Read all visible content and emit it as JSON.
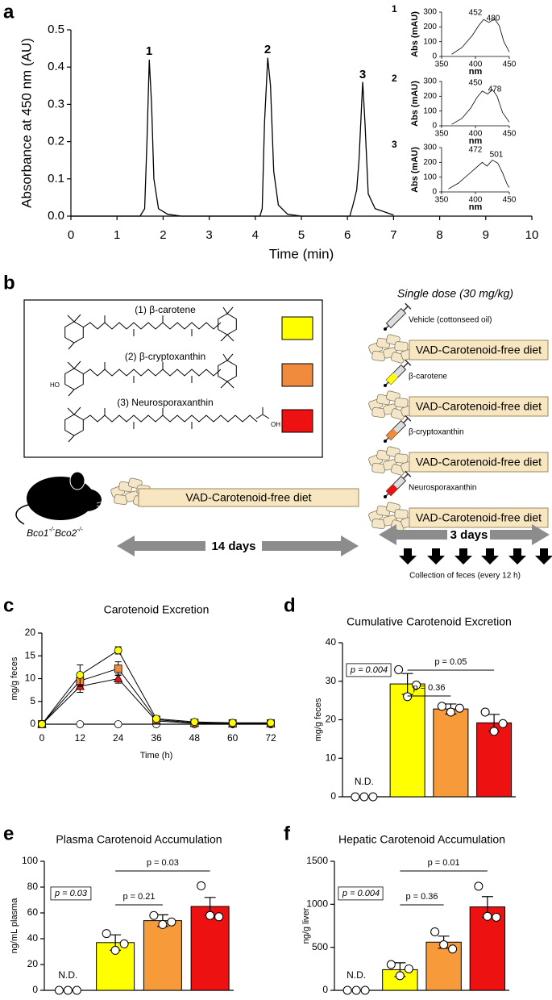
{
  "panel_labels": [
    "a",
    "b",
    "c",
    "d",
    "e",
    "f"
  ],
  "chart_data": [
    {
      "type": "line",
      "xlabel": "Time (min)",
      "ylabel": "Absorbance at 450 nm (AU)",
      "color": "#000000",
      "x": [
        0,
        1.5,
        1.6,
        1.65,
        1.7,
        1.75,
        1.8,
        1.9,
        2.1,
        2.4,
        4.1,
        4.15,
        4.2,
        4.27,
        4.33,
        4.4,
        4.5,
        4.7,
        5,
        6.05,
        6.12,
        6.2,
        6.25,
        6.33,
        6.38,
        6.45,
        6.6,
        7
      ],
      "values": [
        0,
        0,
        0.02,
        0.2,
        0.42,
        0.3,
        0.1,
        0.02,
        0.005,
        0,
        0,
        0.02,
        0.25,
        0.425,
        0.35,
        0.12,
        0.03,
        0.005,
        0,
        0,
        0.03,
        0.07,
        0.15,
        0.36,
        0.25,
        0.06,
        0.02,
        0.003
      ],
      "xlim": [
        0,
        10
      ],
      "xticks": [
        0,
        1,
        2,
        3,
        4,
        5,
        6,
        7,
        8,
        9,
        10
      ],
      "ylim": [
        0,
        0.5
      ],
      "yticks": [
        {
          "value": 0,
          "label": "0.0"
        },
        0.1,
        0.2,
        0.3,
        0.4,
        0.5
      ],
      "annotations": [
        "1",
        "2",
        "3"
      ]
    },
    {
      "type": "line",
      "label": "1",
      "xlabel": "nm",
      "ylabel": "Abs (mAU)",
      "color": "#000000",
      "x": [
        365,
        380,
        395,
        405,
        412,
        420,
        428,
        435,
        442,
        450
      ],
      "values": [
        15,
        60,
        140,
        210,
        250,
        230,
        255,
        210,
        100,
        30
      ],
      "xlim": [
        350,
        450
      ],
      "xticks": [
        350,
        400,
        450
      ],
      "ylim": [
        0,
        300
      ],
      "yticks": [
        0,
        100,
        200,
        300
      ],
      "annotations": [
        "452",
        "480"
      ]
    },
    {
      "type": "line",
      "label": "2",
      "xlabel": "nm",
      "ylabel": "Abs (mAU)",
      "color": "#000000",
      "x": [
        365,
        380,
        393,
        402,
        410,
        418,
        425,
        432,
        440,
        450
      ],
      "values": [
        10,
        50,
        120,
        190,
        235,
        215,
        245,
        200,
        90,
        25
      ],
      "xlim": [
        350,
        450
      ],
      "xticks": [
        350,
        400,
        450
      ],
      "ylim": [
        0,
        300
      ],
      "yticks": [
        0,
        100,
        200,
        300
      ],
      "annotations": [
        "450",
        "478"
      ]
    },
    {
      "type": "line",
      "label": "3",
      "xlabel": "nm",
      "ylabel": "Abs (mAU)",
      "color": "#000000",
      "x": [
        360,
        375,
        390,
        400,
        410,
        417,
        425,
        433,
        440,
        447,
        450
      ],
      "values": [
        20,
        60,
        120,
        160,
        200,
        175,
        215,
        195,
        130,
        50,
        30
      ],
      "xlim": [
        350,
        450
      ],
      "xticks": [
        350,
        400,
        450
      ],
      "ylim": [
        0,
        300
      ],
      "yticks": [
        0,
        100,
        200,
        300
      ],
      "annotations": [
        "472",
        "501"
      ]
    },
    {
      "type": "line",
      "title": "Carotenoid Excretion",
      "xlabel": "Time (h)",
      "ylabel": "mg/g feces",
      "x": [
        0,
        12,
        24,
        36,
        48,
        60,
        72
      ],
      "xlim": [
        0,
        72
      ],
      "xticks": [
        0,
        12,
        24,
        36,
        48,
        60,
        72
      ],
      "ylim": [
        0,
        20
      ],
      "yticks": [
        0,
        5,
        10,
        15,
        20
      ],
      "series": [
        {
          "color": "#ffffff",
          "marker": "circle",
          "values": [
            0,
            0,
            0,
            0,
            0,
            0,
            0
          ]
        },
        {
          "color": "#ee1111",
          "marker": "triangle",
          "values": [
            0,
            8.3,
            10,
            0.7,
            0.2,
            0.1,
            0.1
          ],
          "errors": [
            0,
            1.3,
            1.0,
            0.2,
            0.1,
            0.1,
            0.1
          ]
        },
        {
          "color": "#f08a3c",
          "marker": "square",
          "values": [
            0,
            9.5,
            12.2,
            1.0,
            0.3,
            0.2,
            0.2
          ],
          "errors": [
            0,
            1.2,
            1.5,
            0.2,
            0.1,
            0.1,
            0.1
          ]
        },
        {
          "color": "#ffff00",
          "marker": "circle",
          "values": [
            0,
            10.8,
            16.2,
            1.2,
            0.5,
            0.3,
            0.3
          ],
          "errors": [
            0,
            2.2,
            0.8,
            0.3,
            0.2,
            0.1,
            0.1
          ]
        }
      ]
    },
    {
      "type": "bar",
      "title": "Cumulative Carotenoid Excretion",
      "ylabel": "mg/g feces",
      "categories": [
        null,
        null,
        null,
        null
      ],
      "colors": [
        "#ffffff",
        "#ffff00",
        "#f79a3a",
        "#ee1111"
      ],
      "values": [
        0,
        29.3,
        22.8,
        19.2
      ],
      "errors": [
        null,
        2.7,
        1.3,
        2.2
      ],
      "points": [
        [
          0,
          0,
          0
        ],
        [
          33,
          26,
          29
        ],
        [
          23.5,
          22,
          23
        ],
        [
          22,
          17,
          19
        ]
      ],
      "ylim": [
        0,
        40
      ],
      "yticks": [
        0,
        10,
        20,
        30,
        40
      ],
      "annotations": [
        "N.D.",
        "p = 0.004",
        "p = 0.36",
        "p = 0.05"
      ]
    },
    {
      "type": "bar",
      "title": "Plasma Carotenoid Accumulation",
      "ylabel": "ng/mL plasma",
      "categories": [
        null,
        null,
        null,
        null
      ],
      "colors": [
        "#ffffff",
        "#ffff00",
        "#f79a3a",
        "#ee1111"
      ],
      "values": [
        0,
        37,
        54,
        65
      ],
      "errors": [
        null,
        6,
        4.5,
        7
      ],
      "points": [
        [
          0,
          0,
          0
        ],
        [
          44,
          31,
          36
        ],
        [
          58,
          51,
          53
        ],
        [
          81,
          58,
          57
        ]
      ],
      "ylim": [
        0,
        100
      ],
      "yticks": [
        0,
        20,
        40,
        60,
        80,
        100
      ],
      "annotations": [
        "N.D.",
        "p = 0.03",
        "p = 0.21",
        "p = 0.03"
      ]
    },
    {
      "type": "bar",
      "title": "Hepatic Carotenoid Accumulation",
      "ylabel": "ng/g liver",
      "categories": [
        null,
        null,
        null,
        null
      ],
      "colors": [
        "#ffffff",
        "#ffff00",
        "#f79a3a",
        "#ee1111"
      ],
      "values": [
        0,
        240,
        560,
        970
      ],
      "errors": [
        null,
        80,
        70,
        120
      ],
      "points": [
        [
          0,
          0,
          0
        ],
        [
          300,
          170,
          250
        ],
        [
          680,
          530,
          480
        ],
        [
          1210,
          860,
          850
        ]
      ],
      "ylim": [
        0,
        1500
      ],
      "yticks": [
        0,
        500,
        1000,
        1500
      ],
      "annotations": [
        "N.D.",
        "p = 0.004",
        "p = 0.36",
        "p = 0.01"
      ]
    }
  ],
  "diagram": {
    "compounds": [
      "(1) β-carotene",
      "(2) β-cryptoxanthin",
      "(3) Neurosporaxanthin"
    ],
    "compound_colors": [
      "#ffff00",
      "#f08a3c",
      "#ee1111"
    ],
    "structure_atoms": [
      "HO",
      "OH"
    ],
    "dose_title": "Single dose (30 mg/kg)",
    "treatments": [
      "Vehicle (cottonseed oil)",
      "β-carotene",
      "β-cryptoxanthin",
      "Neurosporaxanthin"
    ],
    "diet": "VAD-Carotenoid-free diet",
    "mouse": [
      "Bco1",
      "-/-",
      "Bco2",
      "-/-"
    ],
    "duration_1": "14 days",
    "duration_2": "3 days",
    "collection": "Collection of feces (every 12 h)"
  }
}
